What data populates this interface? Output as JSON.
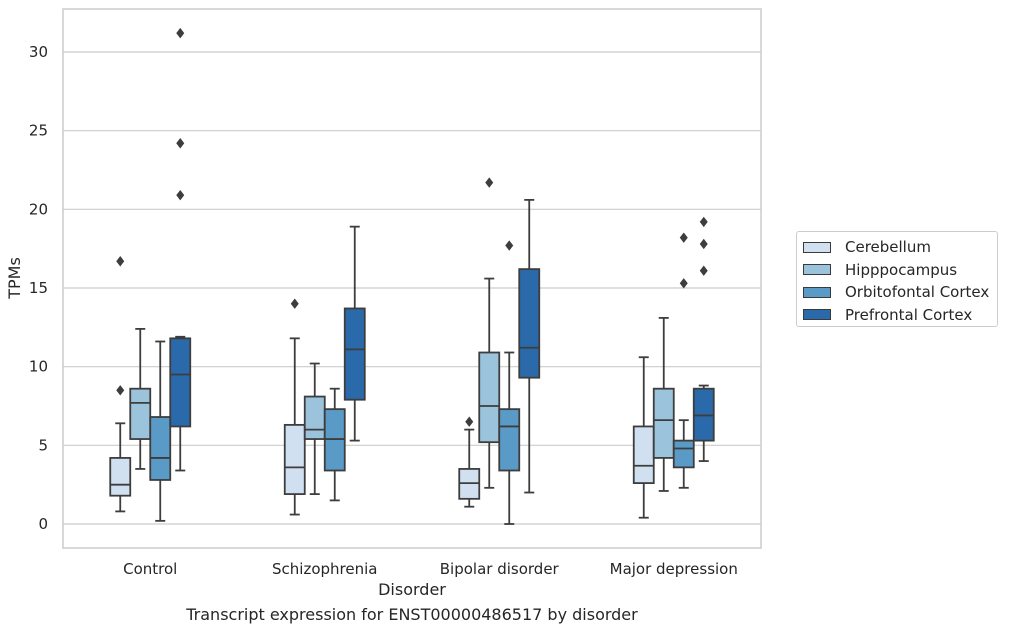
{
  "chart_data": {
    "type": "box",
    "title": "",
    "caption": "Transcript expression for ENST00000486517 by disorder",
    "xlabel": "Disorder",
    "ylabel": "TPMs",
    "ylim": [
      -1.5,
      32.5
    ],
    "yticks": [
      0,
      5,
      10,
      15,
      20,
      25,
      30
    ],
    "grid": "horizontal",
    "legend_position": "right",
    "categories": [
      "Control",
      "Schizophrenia",
      "Bipolar disorder",
      "Major depression"
    ],
    "series": [
      {
        "name": "Cerebellum",
        "color": "#d1e0f0",
        "boxes": [
          {
            "whislo": 0.8,
            "q1": 1.8,
            "med": 2.5,
            "q3": 4.2,
            "whishi": 6.4,
            "fliers": [
              8.5,
              16.7
            ]
          },
          {
            "whislo": 0.6,
            "q1": 1.9,
            "med": 3.6,
            "q3": 6.3,
            "whishi": 11.8,
            "fliers": [
              14.0
            ]
          },
          {
            "whislo": 1.1,
            "q1": 1.6,
            "med": 2.6,
            "q3": 3.5,
            "whishi": 6.0,
            "fliers": [
              6.5
            ]
          },
          {
            "whislo": 0.4,
            "q1": 2.6,
            "med": 3.7,
            "q3": 6.2,
            "whishi": 10.6,
            "fliers": []
          }
        ]
      },
      {
        "name": "Hipppocampus",
        "color": "#9bc3dc",
        "boxes": [
          {
            "whislo": 3.5,
            "q1": 5.4,
            "med": 7.7,
            "q3": 8.6,
            "whishi": 12.4,
            "fliers": []
          },
          {
            "whislo": 1.9,
            "q1": 5.4,
            "med": 6.0,
            "q3": 8.1,
            "whishi": 10.2,
            "fliers": []
          },
          {
            "whislo": 2.3,
            "q1": 5.2,
            "med": 7.5,
            "q3": 10.9,
            "whishi": 15.6,
            "fliers": [
              21.7
            ]
          },
          {
            "whislo": 2.1,
            "q1": 4.2,
            "med": 6.6,
            "q3": 8.6,
            "whishi": 13.1,
            "fliers": []
          }
        ]
      },
      {
        "name": "Orbitofontal Cortex",
        "color": "#5a9ac7",
        "boxes": [
          {
            "whislo": 0.2,
            "q1": 2.8,
            "med": 4.2,
            "q3": 6.8,
            "whishi": 11.6,
            "fliers": []
          },
          {
            "whislo": 1.5,
            "q1": 3.4,
            "med": 5.4,
            "q3": 7.3,
            "whishi": 8.6,
            "fliers": []
          },
          {
            "whislo": 0.0,
            "q1": 3.4,
            "med": 6.2,
            "q3": 7.3,
            "whishi": 10.9,
            "fliers": [
              17.7
            ]
          },
          {
            "whislo": 2.3,
            "q1": 3.6,
            "med": 4.8,
            "q3": 5.3,
            "whishi": 6.6,
            "fliers": [
              15.3,
              18.2
            ]
          }
        ]
      },
      {
        "name": "Prefrontal Cortex",
        "color": "#2a6aaa",
        "boxes": [
          {
            "whislo": 3.4,
            "q1": 6.2,
            "med": 9.5,
            "q3": 11.8,
            "whishi": 11.9,
            "fliers": [
              20.9,
              24.2,
              31.2
            ]
          },
          {
            "whislo": 5.3,
            "q1": 7.9,
            "med": 11.1,
            "q3": 13.7,
            "whishi": 18.9,
            "fliers": []
          },
          {
            "whislo": 2.0,
            "q1": 9.3,
            "med": 11.2,
            "q3": 16.2,
            "whishi": 20.6,
            "fliers": []
          },
          {
            "whislo": 4.0,
            "q1": 5.3,
            "med": 6.9,
            "q3": 8.6,
            "whishi": 8.8,
            "fliers": [
              16.1,
              17.8,
              19.2
            ]
          }
        ]
      }
    ]
  }
}
